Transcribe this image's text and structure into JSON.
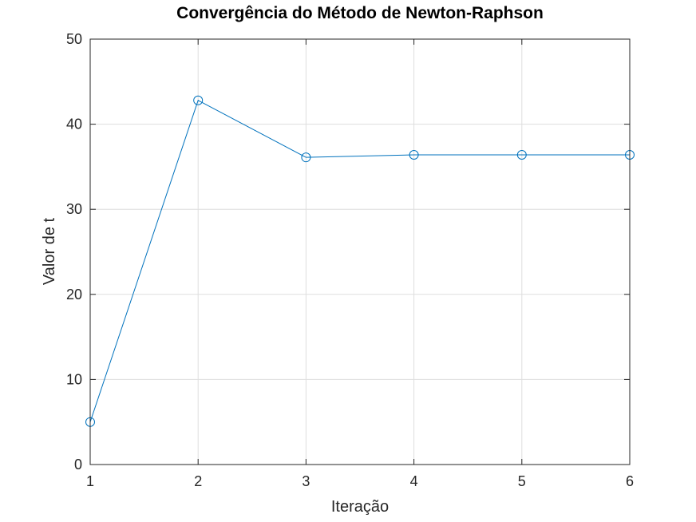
{
  "chart_data": {
    "type": "line",
    "title": "Convergência do Método de Newton-Raphson",
    "xlabel": "Iteração",
    "ylabel": "Valor de t",
    "xlim": [
      1,
      6
    ],
    "ylim": [
      0,
      50
    ],
    "xticks": [
      1,
      2,
      3,
      4,
      5,
      6
    ],
    "yticks": [
      0,
      10,
      20,
      30,
      40,
      50
    ],
    "grid": true,
    "legend": "none",
    "marker": "circle",
    "series": [
      {
        "color": "#0072bd",
        "x": [
          1,
          2,
          3,
          4,
          5,
          6
        ],
        "y": [
          5,
          42.8,
          36.1,
          36.4,
          36.4,
          36.4
        ]
      }
    ]
  }
}
